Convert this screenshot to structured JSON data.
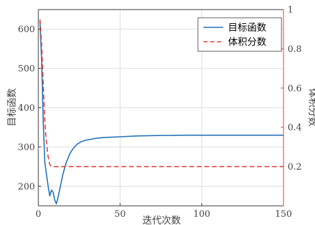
{
  "chart_data": {
    "type": "line",
    "xlabel": "迭代次数",
    "ylabel_left": "目标函数",
    "ylabel_right": "体积分数",
    "xlim": [
      0,
      150
    ],
    "ylim_left": [
      150,
      650
    ],
    "ylim_right": [
      0,
      1
    ],
    "xticks": [
      0,
      50,
      100,
      150
    ],
    "yticks_left": [
      200,
      300,
      400,
      500,
      600
    ],
    "yticks_right": [
      0.2,
      0.4,
      0.6,
      0.8,
      1
    ],
    "grid": true,
    "legend_position": "top-right",
    "colors": {
      "objective": "#1f6fb5",
      "volume": "#e53935",
      "axis_right": "#e53935",
      "grid": "#dddddd"
    },
    "series": [
      {
        "name": "目标函数",
        "axis": "left",
        "style": "solid",
        "x": [
          1,
          2,
          3,
          4,
          5,
          6,
          7,
          8,
          9,
          10,
          11,
          12,
          13,
          14,
          15,
          16,
          17,
          18,
          19,
          20,
          22,
          24,
          26,
          28,
          30,
          35,
          40,
          45,
          50,
          60,
          70,
          80,
          90,
          100,
          110,
          120,
          130,
          140,
          150
        ],
        "y": [
          620,
          520,
          360,
          260,
          230,
          200,
          175,
          190,
          185,
          165,
          155,
          170,
          190,
          210,
          230,
          245,
          260,
          270,
          280,
          288,
          300,
          308,
          313,
          316,
          318,
          322,
          324,
          325,
          326,
          328,
          329,
          329.5,
          330,
          330,
          330,
          330,
          330,
          330,
          330
        ]
      },
      {
        "name": "体积分数",
        "axis": "right",
        "style": "dashed",
        "x": [
          1,
          2,
          3,
          4,
          5,
          6,
          7,
          8,
          10,
          20,
          50,
          100,
          150
        ],
        "y": [
          0.95,
          0.82,
          0.62,
          0.42,
          0.32,
          0.25,
          0.21,
          0.2,
          0.2,
          0.2,
          0.2,
          0.2,
          0.2
        ]
      }
    ]
  }
}
